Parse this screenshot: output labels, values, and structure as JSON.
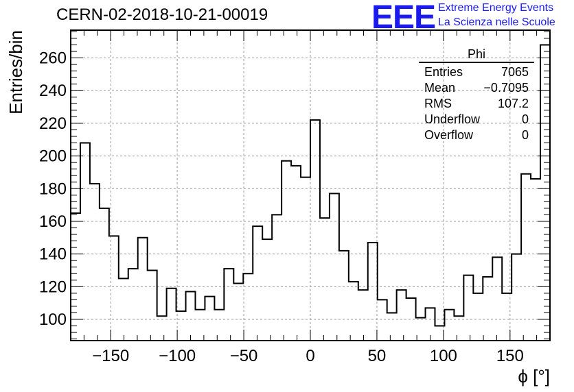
{
  "header": {
    "title": "CERN-02-2018-10-21-00019",
    "logo_text": "EEE",
    "logo_line1": "Extreme Energy Events",
    "logo_line2": "La Scienza nelle Scuole",
    "logo_color": "#1a1aee"
  },
  "stats": {
    "title": "Phi",
    "rows": [
      {
        "label": "Entries",
        "value": "7065"
      },
      {
        "label": "Mean",
        "value": "−0.7095"
      },
      {
        "label": "RMS",
        "value": "107.2"
      },
      {
        "label": "Underflow",
        "value": "0"
      },
      {
        "label": "Overflow",
        "value": "0"
      }
    ]
  },
  "chart_data": {
    "type": "bar",
    "style": "step-histogram",
    "title": "",
    "xlabel": "ϕ [°]",
    "ylabel": "Entries/bin",
    "xlim": [
      -180,
      180
    ],
    "ylim": [
      87,
      277
    ],
    "bin_width": 7.2,
    "x_ticks": [
      -150,
      -100,
      -50,
      0,
      50,
      100,
      150
    ],
    "x_tick_labels": [
      "−150",
      "−100",
      "−50",
      "0",
      "50",
      "100",
      "150"
    ],
    "y_ticks": [
      100,
      120,
      140,
      160,
      180,
      200,
      220,
      240,
      260
    ],
    "y_tick_labels": [
      "100",
      "120",
      "140",
      "160",
      "180",
      "200",
      "220",
      "240",
      "260"
    ],
    "grid": true,
    "line_color": "#000000",
    "bin_edges": [
      -180,
      -172.8,
      -165.6,
      -158.4,
      -151.2,
      -144,
      -136.8,
      -129.6,
      -122.4,
      -115.2,
      -108,
      -100.8,
      -93.6,
      -86.4,
      -79.2,
      -72,
      -64.8,
      -57.6,
      -50.4,
      -43.2,
      -36,
      -28.8,
      -21.6,
      -14.4,
      -7.2,
      0,
      7.2,
      14.4,
      21.6,
      28.8,
      36,
      43.2,
      50.4,
      57.6,
      64.8,
      72,
      79.2,
      86.4,
      93.6,
      100.8,
      108,
      115.2,
      122.4,
      129.6,
      136.8,
      144,
      151.2,
      158.4,
      165.6,
      172.8,
      180
    ],
    "values": [
      165,
      208,
      183,
      168,
      151,
      125,
      131,
      150,
      130,
      102,
      119,
      105,
      117,
      106,
      114,
      106,
      131,
      122,
      128,
      157,
      149,
      164,
      197,
      194,
      187,
      222,
      162,
      177,
      142,
      123,
      118,
      147,
      112,
      104,
      118,
      113,
      101,
      107,
      96,
      106,
      102,
      127,
      116,
      126,
      138,
      116,
      140,
      189,
      186,
      268
    ]
  }
}
